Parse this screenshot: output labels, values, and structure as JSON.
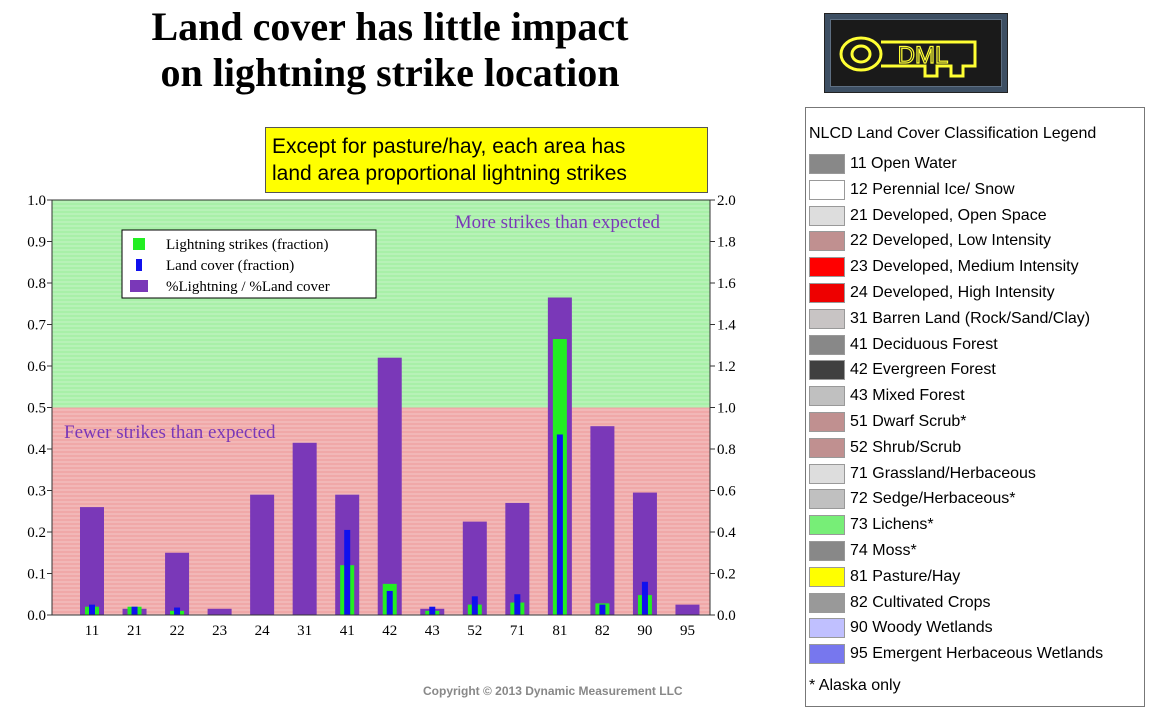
{
  "title": {
    "line1": "Land cover has little impact",
    "line2": "on lightning strike location"
  },
  "logo": {
    "text": "DML",
    "colors": {
      "background": "#3d4f63",
      "inner": "#1a1a1a",
      "key": "#ffff33"
    }
  },
  "callout": {
    "line1": "Except for pasture/hay, each area has",
    "line2": "land area proportional lightning strikes",
    "color": "#ffff00"
  },
  "copyright": "Copyright © 2013 Dynamic Measurement LLC",
  "chart_data": {
    "type": "bar",
    "categories": [
      "11",
      "21",
      "22",
      "23",
      "24",
      "31",
      "41",
      "42",
      "43",
      "52",
      "71",
      "81",
      "82",
      "90",
      "95"
    ],
    "ylim_left": [
      0,
      1.0
    ],
    "ylim_right": [
      0,
      2.0
    ],
    "yticks_left": [
      "0.0",
      "0.1",
      "0.2",
      "0.3",
      "0.4",
      "0.5",
      "0.6",
      "0.7",
      "0.8",
      "0.9",
      "1.0"
    ],
    "yticks_right": [
      "0.0",
      "0.2",
      "0.4",
      "0.6",
      "0.8",
      "1.0",
      "1.2",
      "1.4",
      "1.6",
      "1.8",
      "2.0"
    ],
    "threshold_right": 1.0,
    "region_labels": {
      "above": "More strikes than expected",
      "below": "Fewer strikes than expected"
    },
    "region_colors": {
      "above": "#a8f0a8",
      "below": "#f0a8a8"
    },
    "legend_placement": "top-left",
    "series": [
      {
        "name": "%Lightning / %Land cover",
        "axis": "right",
        "color": "#7a38b8",
        "values": [
          0.52,
          0.03,
          0.3,
          0.03,
          0.58,
          0.83,
          0.58,
          1.24,
          0.03,
          0.45,
          0.54,
          1.53,
          0.91,
          0.59,
          0.05
        ]
      },
      {
        "name": "Lightning strikes (fraction)",
        "axis": "left",
        "color": "#22ee22",
        "values": [
          0.02,
          0.02,
          0.01,
          0.0,
          0.0,
          0.0,
          0.12,
          0.075,
          0.01,
          0.025,
          0.03,
          0.665,
          0.028,
          0.048,
          0.0
        ]
      },
      {
        "name": "Land cover (fraction)",
        "axis": "left",
        "color": "#1010ee",
        "values": [
          0.025,
          0.02,
          0.018,
          0.0,
          0.0,
          0.0,
          0.205,
          0.058,
          0.02,
          0.045,
          0.05,
          0.435,
          0.025,
          0.08,
          0.0
        ]
      }
    ]
  },
  "legend": {
    "title": "NLCD Land Cover Classification Legend",
    "items": [
      {
        "label": "11 Open Water",
        "color": "#888888"
      },
      {
        "label": "12 Perennial Ice/ Snow",
        "color": "#ffffff"
      },
      {
        "label": "21 Developed, Open Space",
        "color": "#dddddd"
      },
      {
        "label": "22 Developed, Low Intensity",
        "color": "#c09090"
      },
      {
        "label": "23 Developed, Medium Intensity",
        "color": "#ff0000"
      },
      {
        "label": "24 Developed, High Intensity",
        "color": "#ee0000"
      },
      {
        "label": "31 Barren Land (Rock/Sand/Clay)",
        "color": "#c8c4c4"
      },
      {
        "label": "41 Deciduous Forest",
        "color": "#888888"
      },
      {
        "label": "42 Evergreen Forest",
        "color": "#404040"
      },
      {
        "label": "43 Mixed Forest",
        "color": "#c0c0c0"
      },
      {
        "label": "51 Dwarf Scrub*",
        "color": "#c09090"
      },
      {
        "label": "52 Shrub/Scrub",
        "color": "#c09090"
      },
      {
        "label": "71 Grassland/Herbaceous",
        "color": "#dddddd"
      },
      {
        "label": "72 Sedge/Herbaceous*",
        "color": "#c0c0c0"
      },
      {
        "label": "73 Lichens*",
        "color": "#77ee77"
      },
      {
        "label": "74 Moss*",
        "color": "#888888"
      },
      {
        "label": "81 Pasture/Hay",
        "color": "#ffff00"
      },
      {
        "label": "82 Cultivated Crops",
        "color": "#999999"
      },
      {
        "label": "90 Woody Wetlands",
        "color": "#c0c0ff"
      },
      {
        "label": "95 Emergent Herbaceous Wetlands",
        "color": "#7777ee"
      }
    ],
    "note": "* Alaska only"
  }
}
